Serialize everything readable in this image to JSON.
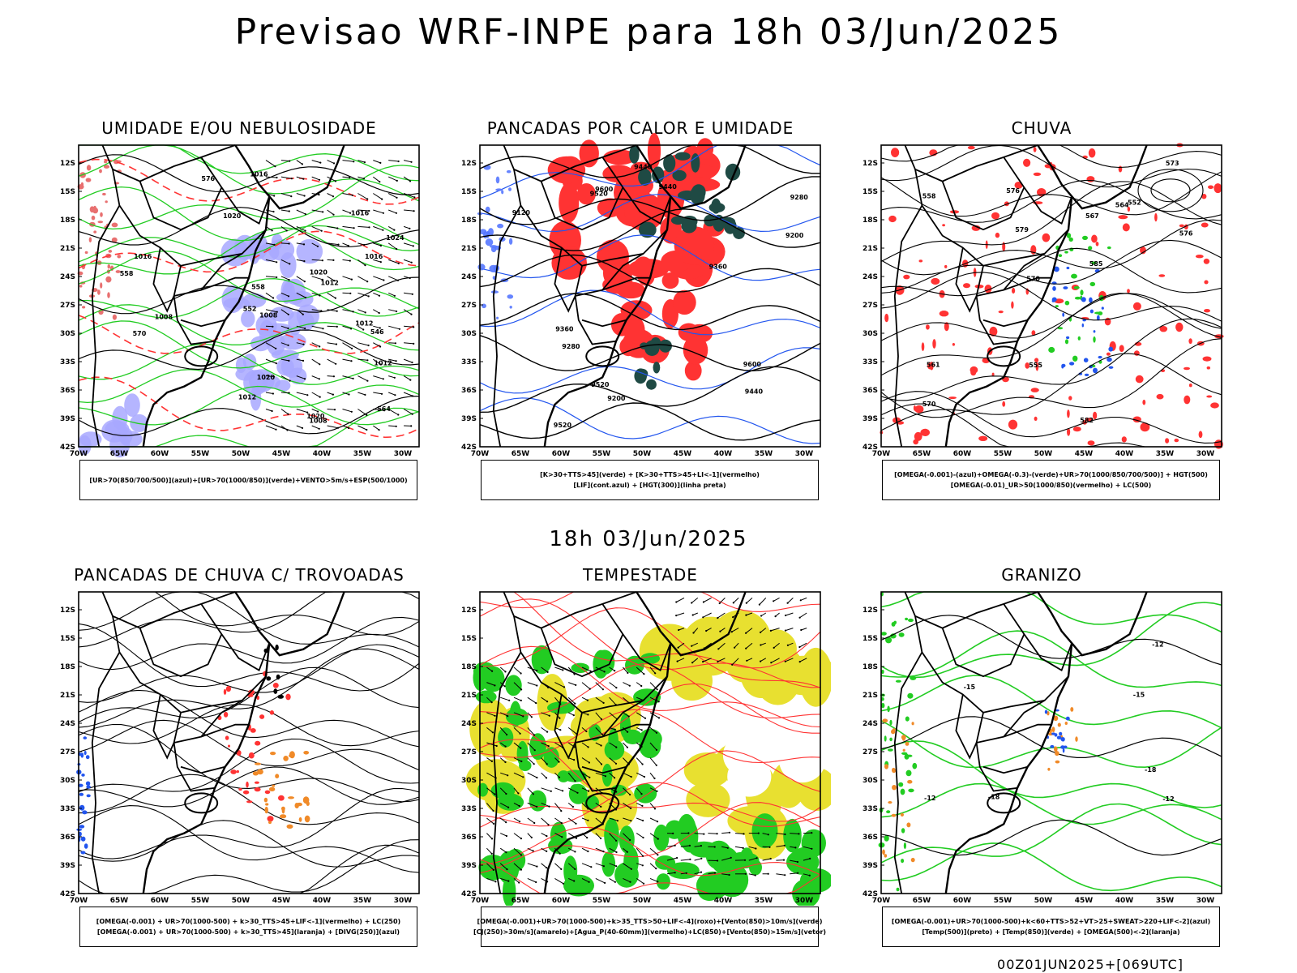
{
  "header": {
    "title": "Previsao WRF-INPE  para 18h 03/Jun/2025"
  },
  "middle_title": "18h 03/Jun/2025",
  "footer": {
    "run_code": "00Z01JUN2025+[069UTC]"
  },
  "axes": {
    "lat_labels": [
      "12S",
      "15S",
      "18S",
      "21S",
      "24S",
      "27S",
      "30S",
      "33S",
      "36S",
      "39S",
      "42S"
    ],
    "lon_labels": [
      "70W",
      "65W",
      "60W",
      "55W",
      "50W",
      "45W",
      "40W",
      "35W",
      "30W"
    ]
  },
  "colors": {
    "black": "#000000",
    "green": "#22cc22",
    "red": "#ff3333",
    "blue": "#2255ee",
    "lavender": "#a8a8ff",
    "darkteal": "#1f4a44",
    "yellow": "#e8e030",
    "orange": "#f08a28"
  },
  "panels": [
    {
      "title": "UMIDADE E/OU NEBULOSIDADE",
      "legend": [
        "[UR>70(850/700/500)](azul)+[UR>70(1000/850)](verde)+VENTO>5m/s+ESP(500/1000)"
      ],
      "contour_labels": [
        "1012",
        "1012",
        "1016",
        "1016",
        "1020",
        "1020",
        "1024",
        "1008",
        "1008",
        "1012",
        "1016",
        "1020",
        "1012",
        "1008",
        "1020",
        "1016",
        "570",
        "576",
        "564",
        "558",
        "552",
        "558",
        "546"
      ]
    },
    {
      "title": "PANCADAS POR CALOR E UMIDADE",
      "legend": [
        "[K>30+TTS>45](verde) + [K>30+TTS>45+LI<-1](vermelho)",
        "[LIF](cont.azul) + [HGT(300)](linha preta)"
      ],
      "contour_labels": [
        "9600",
        "9600",
        "9520",
        "9520",
        "9440",
        "9440",
        "9360",
        "9360",
        "9280",
        "9280",
        "9200",
        "9200",
        "9120",
        "9520",
        "9440"
      ]
    },
    {
      "title": "CHUVA",
      "legend": [
        "[OMEGA(-0.001)-(azul)+OMEGA(-0.3)-(verde)+UR>70(1000/850/700/500)] + HGT(500)",
        "[OMEGA(-0.01)_UR>50(1000/850)(vermelho) + LC(500)"
      ],
      "contour_labels": [
        "582",
        "579",
        "576",
        "573",
        "570",
        "567",
        "564",
        "561",
        "558",
        "555",
        "552",
        "585",
        "576",
        "570"
      ]
    },
    {
      "title": "PANCADAS DE CHUVA C/ TROVOADAS",
      "legend": [
        "[OMEGA(-0.001) + UR>70(1000-500) + k>30_TTS>45+LIF<-1](vermelho) + LC(250)",
        "[OMEGA(-0.001) + UR>70(1000-500) + k>30_TTS>45](laranja) + [DIVG(250)](azul)"
      ],
      "contour_labels": []
    },
    {
      "title": "TEMPESTADE",
      "legend": [
        "[OMEGA(-0.001)+UR>70(1000-500)+k>35_TTS>50+LIF<-4](roxo)+[Vento(850)>10m/s](verde)",
        "[CJ(250)>30m/s](amarelo)+[Agua_P(40-60mm)](vermelho)+LC(850)+[Vento(850)>15m/s](vetor)"
      ],
      "contour_labels": []
    },
    {
      "title": "GRANIZO",
      "legend": [
        "[OMEGA(-0.001)+UR>70(1000-500)+k<60+TTS>52+VT>25+SWEAT>220+LIF<-2](azul)",
        "[Temp(500)](preto) + [Temp(850)](verde) + [OMEGA(500)<-2](laranja)"
      ],
      "contour_labels": [
        "-12",
        "-12",
        "-15",
        "-18",
        "-15",
        "-18",
        "-12"
      ]
    }
  ]
}
